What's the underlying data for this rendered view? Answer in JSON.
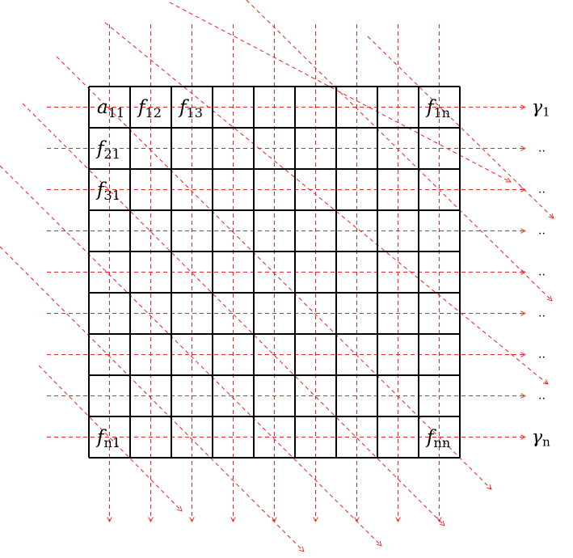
{
  "diagram": {
    "grid": {
      "rows": 9,
      "cols": 9
    },
    "cell_labels": [
      {
        "row": 0,
        "col": 0,
        "base": "a",
        "sub": "11"
      },
      {
        "row": 0,
        "col": 1,
        "base": "f",
        "sub": "12"
      },
      {
        "row": 0,
        "col": 2,
        "base": "f",
        "sub": "13"
      },
      {
        "row": 0,
        "col": 8,
        "base": "f",
        "sub": "1n"
      },
      {
        "row": 1,
        "col": 0,
        "base": "f",
        "sub": "21"
      },
      {
        "row": 2,
        "col": 0,
        "base": "f",
        "sub": "31"
      },
      {
        "row": 8,
        "col": 0,
        "base": "f",
        "sub": "n1"
      },
      {
        "row": 8,
        "col": 8,
        "base": "f",
        "sub": "nn"
      }
    ],
    "row_labels": [
      {
        "row": 0,
        "base": "γ",
        "sub": "1"
      },
      {
        "row": 1,
        "text": ".."
      },
      {
        "row": 2,
        "text": ".."
      },
      {
        "row": 3,
        "text": ".."
      },
      {
        "row": 4,
        "text": ".."
      },
      {
        "row": 5,
        "text": ".."
      },
      {
        "row": 6,
        "text": ".."
      },
      {
        "row": 7,
        "text": ".."
      },
      {
        "row": 8,
        "base": "γ",
        "sub": "n"
      }
    ],
    "arrow_color": "#ee2222",
    "grid_color": "#000000"
  }
}
